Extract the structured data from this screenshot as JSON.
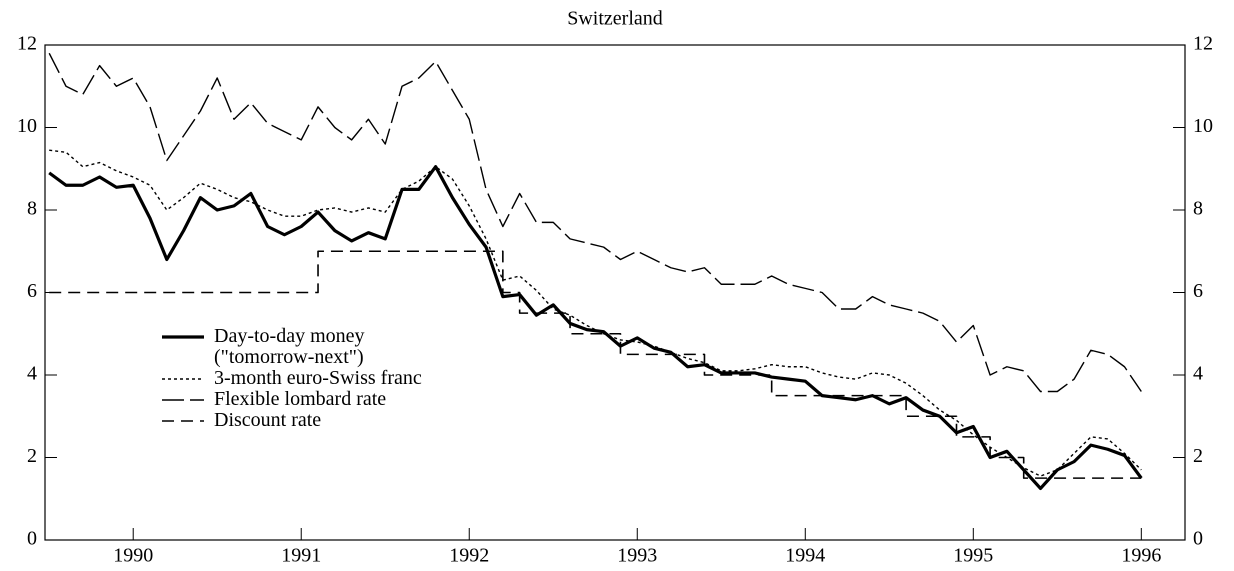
{
  "chart_data": {
    "type": "line",
    "title": "Switzerland",
    "x": [
      1990.0,
      1990.1,
      1990.2,
      1990.3,
      1990.4,
      1990.5,
      1990.6,
      1990.7,
      1990.8,
      1990.9,
      1991.0,
      1991.1,
      1991.2,
      1991.3,
      1991.4,
      1991.5,
      1991.6,
      1991.7,
      1991.8,
      1991.9,
      1992.0,
      1992.1,
      1992.2,
      1992.3,
      1992.4,
      1992.5,
      1992.6,
      1992.7,
      1992.8,
      1992.9,
      1993.0,
      1993.1,
      1993.2,
      1993.3,
      1993.4,
      1993.5,
      1993.6,
      1993.7,
      1993.8,
      1993.9,
      1994.0,
      1994.1,
      1994.2,
      1994.3,
      1994.4,
      1994.5,
      1994.6,
      1994.7,
      1994.8,
      1994.9,
      1995.0,
      1995.1,
      1995.2,
      1995.3,
      1995.4,
      1995.5,
      1995.6,
      1995.7,
      1995.8,
      1995.9,
      1996.0,
      1996.1,
      1996.2,
      1996.3,
      1996.4,
      1996.5
    ],
    "series": [
      {
        "name": "Day-to-day money\n(\"tomorrow-next\")",
        "color": "#000000",
        "dash": "solid",
        "width": 3.2,
        "values": [
          8.9,
          8.6,
          8.6,
          8.8,
          8.55,
          8.6,
          7.8,
          6.8,
          7.5,
          8.3,
          8.0,
          8.1,
          8.4,
          7.6,
          7.4,
          7.6,
          7.95,
          7.5,
          7.25,
          7.45,
          7.3,
          8.5,
          8.5,
          9.05,
          8.3,
          7.65,
          7.1,
          5.9,
          5.95,
          5.45,
          5.7,
          5.25,
          5.1,
          5.05,
          4.7,
          4.9,
          4.65,
          4.55,
          4.2,
          4.25,
          4.05,
          4.05,
          4.05,
          3.95,
          3.9,
          3.85,
          3.5,
          3.45,
          3.4,
          3.5,
          3.3,
          3.45,
          3.15,
          3.0,
          2.6,
          2.75,
          2.0,
          2.15,
          1.7,
          1.25,
          1.7,
          1.9,
          2.3,
          2.2,
          2.05,
          1.5
        ]
      },
      {
        "name": "3-month euro-Swiss franc",
        "color": "#000000",
        "dash": "dotted",
        "width": 1.4,
        "values": [
          9.45,
          9.4,
          9.05,
          9.15,
          8.95,
          8.8,
          8.6,
          8.0,
          8.3,
          8.65,
          8.5,
          8.3,
          8.2,
          8.0,
          7.85,
          7.85,
          8.0,
          8.05,
          7.95,
          8.05,
          7.95,
          8.5,
          8.7,
          9.05,
          8.75,
          8.1,
          7.3,
          6.3,
          6.4,
          6.05,
          5.6,
          5.45,
          5.2,
          5.0,
          4.85,
          4.8,
          4.7,
          4.55,
          4.4,
          4.3,
          4.1,
          4.1,
          4.15,
          4.25,
          4.2,
          4.2,
          4.05,
          3.95,
          3.9,
          4.05,
          4.0,
          3.8,
          3.5,
          3.15,
          2.9,
          2.55,
          2.25,
          2.0,
          1.75,
          1.55,
          1.7,
          2.1,
          2.5,
          2.45,
          2.1,
          1.7
        ]
      },
      {
        "name": "Flexible lombard rate",
        "color": "#000000",
        "dash": "longdash",
        "width": 1.4,
        "values": [
          11.8,
          11.0,
          10.8,
          11.5,
          11.0,
          11.2,
          10.5,
          9.2,
          9.8,
          10.4,
          11.2,
          10.2,
          10.6,
          10.1,
          9.9,
          9.7,
          10.5,
          10.0,
          9.7,
          10.2,
          9.6,
          11.0,
          11.2,
          11.6,
          10.9,
          10.2,
          8.5,
          7.6,
          8.4,
          7.7,
          7.7,
          7.3,
          7.2,
          7.1,
          6.8,
          7.0,
          6.8,
          6.6,
          6.5,
          6.6,
          6.2,
          6.2,
          6.2,
          6.4,
          6.2,
          6.1,
          6.0,
          5.6,
          5.6,
          5.9,
          5.7,
          5.6,
          5.5,
          5.3,
          4.8,
          5.2,
          4.0,
          4.2,
          4.1,
          3.6,
          3.6,
          3.9,
          4.6,
          4.5,
          4.2,
          3.6
        ]
      },
      {
        "name": "Discount rate",
        "color": "#000000",
        "dash": "dashed",
        "width": 1.6,
        "step": true,
        "values": [
          6,
          6,
          6,
          6,
          6,
          6,
          6,
          6,
          6,
          6,
          6,
          6,
          6,
          6,
          6,
          6,
          7,
          7,
          7,
          7,
          7,
          7,
          7,
          7,
          7,
          7,
          7,
          6,
          5.5,
          5.5,
          5.5,
          5,
          5,
          5,
          4.5,
          4.5,
          4.5,
          4.5,
          4.5,
          4,
          4,
          4,
          4,
          3.5,
          3.5,
          3.5,
          3.5,
          3.5,
          3.5,
          3.5,
          3.5,
          3,
          3,
          3,
          2.5,
          2.5,
          2,
          2,
          1.5,
          1.5,
          1.5,
          1.5,
          1.5,
          1.5,
          1.5,
          1.5
        ]
      }
    ],
    "xlim": [
      1989.975,
      1996.76
    ],
    "xticks": [
      {
        "value": 1990.5,
        "label": "1990"
      },
      {
        "value": 1991.5,
        "label": "1991"
      },
      {
        "value": 1992.5,
        "label": "1992"
      },
      {
        "value": 1993.5,
        "label": "1993"
      },
      {
        "value": 1994.5,
        "label": "1994"
      },
      {
        "value": 1995.5,
        "label": "1995"
      },
      {
        "value": 1996.5,
        "label": "1996"
      }
    ],
    "ylim": [
      0,
      12
    ],
    "yticks": [
      0,
      2,
      4,
      6,
      8,
      10,
      12
    ],
    "right_axis_labels": true
  }
}
